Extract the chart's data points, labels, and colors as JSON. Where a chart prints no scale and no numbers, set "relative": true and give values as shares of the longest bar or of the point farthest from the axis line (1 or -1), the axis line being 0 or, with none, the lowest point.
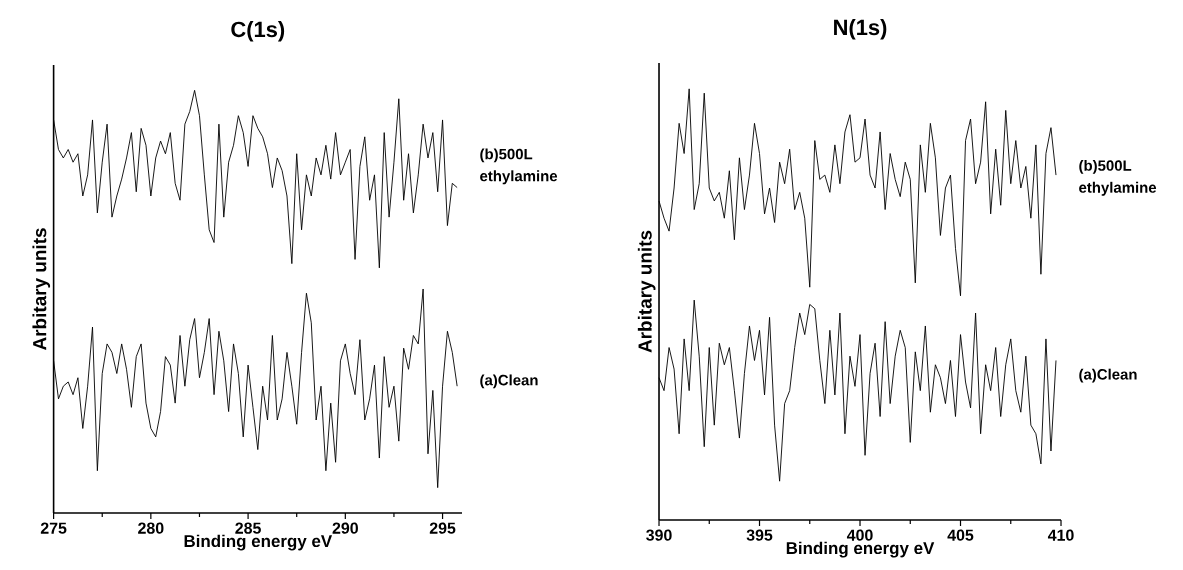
{
  "chart_data": [
    {
      "type": "line",
      "title": "C(1s)",
      "xlabel": "Binding energy eV",
      "ylabel": "Arbitary units",
      "relative": true,
      "xlim": [
        275,
        296
      ],
      "xticks": [
        275,
        280,
        285,
        290,
        295
      ],
      "x": [
        275,
        275.25,
        275.5,
        275.75,
        276,
        276.25,
        276.5,
        276.75,
        277,
        277.25,
        277.5,
        277.75,
        278,
        278.25,
        278.5,
        278.75,
        279,
        279.25,
        279.5,
        279.75,
        280,
        280.25,
        280.5,
        280.75,
        281,
        281.25,
        281.5,
        281.75,
        282,
        282.25,
        282.5,
        282.75,
        283,
        283.25,
        283.5,
        283.75,
        284,
        284.25,
        284.5,
        284.75,
        285,
        285.25,
        285.5,
        285.75,
        286,
        286.25,
        286.5,
        286.75,
        287,
        287.25,
        287.5,
        287.75,
        288,
        288.25,
        288.5,
        288.75,
        289,
        289.25,
        289.5,
        289.75,
        290,
        290.25,
        290.5,
        290.75,
        291,
        291.25,
        291.5,
        291.75,
        292,
        292.25,
        292.5,
        292.75,
        293,
        293.25,
        293.5,
        293.75,
        294,
        294.25,
        294.5,
        294.75,
        295,
        295.25,
        295.5,
        295.75
      ],
      "series": [
        {
          "name": "(b)500L ethylamine",
          "color": "#000000",
          "values": [
            0.93,
            0.86,
            0.84,
            0.86,
            0.83,
            0.85,
            0.75,
            0.8,
            0.93,
            0.71,
            0.83,
            0.92,
            0.7,
            0.75,
            0.79,
            0.84,
            0.9,
            0.76,
            0.91,
            0.87,
            0.75,
            0.84,
            0.88,
            0.85,
            0.9,
            0.78,
            0.74,
            0.92,
            0.95,
            1.0,
            0.94,
            0.8,
            0.67,
            0.64,
            0.92,
            0.7,
            0.83,
            0.87,
            0.94,
            0.9,
            0.82,
            0.94,
            0.91,
            0.89,
            0.85,
            0.77,
            0.84,
            0.81,
            0.75,
            0.59,
            0.85,
            0.67,
            0.8,
            0.75,
            0.84,
            0.8,
            0.87,
            0.79,
            0.9,
            0.8,
            0.83,
            0.86,
            0.6,
            0.82,
            0.89,
            0.74,
            0.8,
            0.58,
            0.9,
            0.7,
            0.83,
            0.98,
            0.74,
            0.85,
            0.71,
            0.8,
            0.92,
            0.84,
            0.9,
            0.76,
            0.93,
            0.68,
            0.78,
            0.77
          ]
        },
        {
          "name": "(a)Clean",
          "color": "#000000",
          "values": [
            0.36,
            0.27,
            0.3,
            0.31,
            0.28,
            0.32,
            0.2,
            0.3,
            0.44,
            0.1,
            0.33,
            0.4,
            0.38,
            0.33,
            0.4,
            0.34,
            0.25,
            0.37,
            0.4,
            0.26,
            0.2,
            0.18,
            0.24,
            0.37,
            0.35,
            0.26,
            0.42,
            0.3,
            0.41,
            0.46,
            0.32,
            0.38,
            0.46,
            0.28,
            0.43,
            0.36,
            0.24,
            0.4,
            0.33,
            0.18,
            0.35,
            0.25,
            0.15,
            0.3,
            0.22,
            0.42,
            0.22,
            0.27,
            0.38,
            0.3,
            0.21,
            0.38,
            0.52,
            0.45,
            0.22,
            0.3,
            0.1,
            0.26,
            0.12,
            0.36,
            0.4,
            0.33,
            0.28,
            0.41,
            0.22,
            0.27,
            0.35,
            0.13,
            0.37,
            0.25,
            0.3,
            0.17,
            0.39,
            0.34,
            0.42,
            0.4,
            0.53,
            0.14,
            0.29,
            0.06,
            0.3,
            0.43,
            0.38,
            0.3
          ]
        }
      ]
    },
    {
      "type": "line",
      "title": "N(1s)",
      "xlabel": "Binding energy eV",
      "ylabel": "Arbitary units",
      "relative": true,
      "xlim": [
        390,
        410
      ],
      "xticks": [
        390,
        395,
        400,
        405,
        410
      ],
      "x": [
        390,
        390.25,
        390.5,
        390.75,
        391,
        391.25,
        391.5,
        391.75,
        392,
        392.25,
        392.5,
        392.75,
        393,
        393.25,
        393.5,
        393.75,
        394,
        394.25,
        394.5,
        394.75,
        395,
        395.25,
        395.5,
        395.75,
        396,
        396.25,
        396.5,
        396.75,
        397,
        397.25,
        397.5,
        397.75,
        398,
        398.25,
        398.5,
        398.75,
        399,
        399.25,
        399.5,
        399.75,
        400,
        400.25,
        400.5,
        400.75,
        401,
        401.25,
        401.5,
        401.75,
        402,
        402.25,
        402.5,
        402.75,
        403,
        403.25,
        403.5,
        403.75,
        404,
        404.25,
        404.5,
        404.75,
        405,
        405.25,
        405.5,
        405.75,
        406,
        406.25,
        406.5,
        406.75,
        407,
        407.25,
        407.5,
        407.75,
        408,
        408.25,
        408.5,
        408.75,
        409,
        409.25,
        409.5,
        409.75
      ],
      "series": [
        {
          "name": "(b)500L ethylamine",
          "color": "#000000",
          "values": [
            0.74,
            0.7,
            0.67,
            0.77,
            0.92,
            0.85,
            1.0,
            0.72,
            0.78,
            0.99,
            0.77,
            0.74,
            0.76,
            0.7,
            0.81,
            0.65,
            0.84,
            0.72,
            0.8,
            0.92,
            0.85,
            0.71,
            0.77,
            0.69,
            0.83,
            0.78,
            0.86,
            0.72,
            0.76,
            0.7,
            0.54,
            0.88,
            0.79,
            0.8,
            0.76,
            0.87,
            0.78,
            0.9,
            0.94,
            0.83,
            0.84,
            0.93,
            0.8,
            0.77,
            0.9,
            0.72,
            0.85,
            0.79,
            0.75,
            0.83,
            0.79,
            0.55,
            0.87,
            0.76,
            0.92,
            0.84,
            0.66,
            0.77,
            0.8,
            0.63,
            0.52,
            0.88,
            0.93,
            0.78,
            0.83,
            0.97,
            0.71,
            0.86,
            0.73,
            0.95,
            0.78,
            0.88,
            0.77,
            0.82,
            0.7,
            0.87,
            0.57,
            0.85,
            0.91,
            0.8
          ]
        },
        {
          "name": "(a)Clean",
          "color": "#000000",
          "values": [
            0.33,
            0.3,
            0.4,
            0.35,
            0.2,
            0.42,
            0.3,
            0.51,
            0.38,
            0.17,
            0.4,
            0.22,
            0.41,
            0.36,
            0.4,
            0.3,
            0.19,
            0.34,
            0.45,
            0.37,
            0.44,
            0.29,
            0.47,
            0.22,
            0.09,
            0.27,
            0.3,
            0.4,
            0.48,
            0.43,
            0.5,
            0.49,
            0.37,
            0.27,
            0.44,
            0.29,
            0.48,
            0.2,
            0.38,
            0.31,
            0.43,
            0.15,
            0.34,
            0.41,
            0.24,
            0.46,
            0.27,
            0.38,
            0.44,
            0.4,
            0.18,
            0.39,
            0.3,
            0.45,
            0.25,
            0.36,
            0.33,
            0.27,
            0.37,
            0.24,
            0.43,
            0.32,
            0.26,
            0.48,
            0.2,
            0.36,
            0.3,
            0.4,
            0.24,
            0.36,
            0.42,
            0.3,
            0.25,
            0.38,
            0.22,
            0.2,
            0.13,
            0.42,
            0.16,
            0.37
          ]
        }
      ]
    }
  ]
}
